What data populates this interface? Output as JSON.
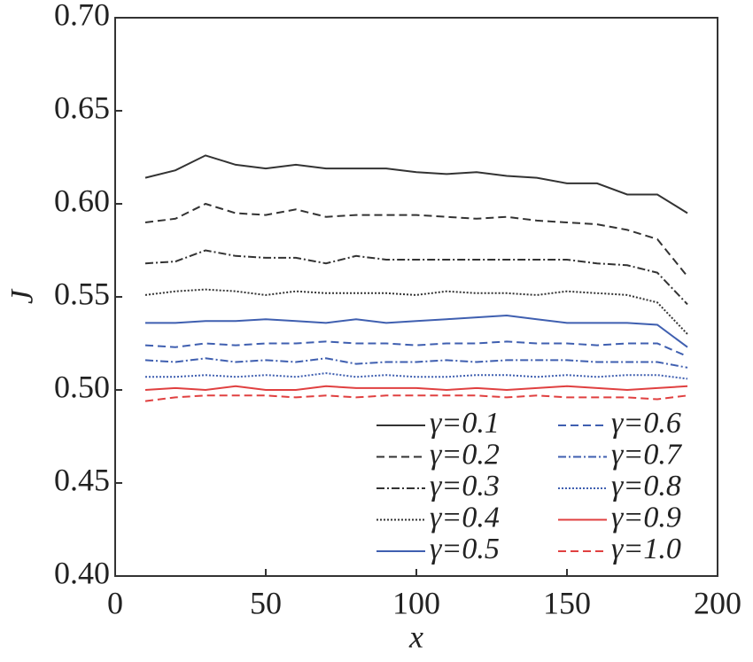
{
  "chart_data": {
    "type": "line",
    "xlabel": "x",
    "ylabel": "J",
    "x": [
      10,
      20,
      30,
      40,
      50,
      60,
      70,
      80,
      90,
      100,
      110,
      120,
      130,
      140,
      150,
      160,
      170,
      180,
      190
    ],
    "xlim": [
      0,
      200
    ],
    "xticks": [
      0,
      50,
      100,
      150,
      200
    ],
    "ylim": [
      0.4,
      0.7
    ],
    "yticks": [
      {
        "value": 0.4,
        "label": "0.40"
      },
      {
        "value": 0.45,
        "label": "0.45"
      },
      {
        "value": 0.5,
        "label": "0.50"
      },
      {
        "value": 0.55,
        "label": "0.55"
      },
      {
        "value": 0.6,
        "label": "0.60"
      },
      {
        "value": 0.65,
        "label": "0.65"
      },
      {
        "value": 0.7,
        "label": "0.70"
      }
    ],
    "legend": "lower right",
    "series": [
      {
        "name": "γ=0.1",
        "color": "#333333",
        "dash": "solid",
        "values": [
          0.614,
          0.618,
          0.626,
          0.621,
          0.619,
          0.621,
          0.619,
          0.619,
          0.619,
          0.617,
          0.616,
          0.617,
          0.615,
          0.614,
          0.611,
          0.611,
          0.605,
          0.605,
          0.595
        ]
      },
      {
        "name": "γ=0.2",
        "color": "#333333",
        "dash": "dashed",
        "values": [
          0.59,
          0.592,
          0.6,
          0.595,
          0.594,
          0.597,
          0.593,
          0.594,
          0.594,
          0.594,
          0.593,
          0.592,
          0.593,
          0.591,
          0.59,
          0.589,
          0.586,
          0.581,
          0.561
        ]
      },
      {
        "name": "γ=0.3",
        "color": "#333333",
        "dash": "dashdot",
        "values": [
          0.568,
          0.569,
          0.575,
          0.572,
          0.571,
          0.571,
          0.568,
          0.572,
          0.57,
          0.57,
          0.57,
          0.57,
          0.57,
          0.57,
          0.57,
          0.568,
          0.567,
          0.563,
          0.546
        ]
      },
      {
        "name": "γ=0.4",
        "color": "#333333",
        "dash": "dotted",
        "values": [
          0.551,
          0.553,
          0.554,
          0.553,
          0.551,
          0.553,
          0.552,
          0.552,
          0.552,
          0.551,
          0.553,
          0.552,
          0.552,
          0.551,
          0.553,
          0.552,
          0.551,
          0.547,
          0.53
        ]
      },
      {
        "name": "γ=0.5",
        "color": "#3f5fb0",
        "dash": "solid",
        "values": [
          0.536,
          0.536,
          0.537,
          0.537,
          0.538,
          0.537,
          0.536,
          0.538,
          0.536,
          0.537,
          0.538,
          0.539,
          0.54,
          0.538,
          0.536,
          0.536,
          0.536,
          0.535,
          0.523
        ]
      },
      {
        "name": "γ=0.6",
        "color": "#3f5fb0",
        "dash": "dashed",
        "values": [
          0.524,
          0.523,
          0.525,
          0.524,
          0.525,
          0.525,
          0.526,
          0.525,
          0.525,
          0.524,
          0.525,
          0.525,
          0.526,
          0.525,
          0.525,
          0.524,
          0.525,
          0.525,
          0.518
        ]
      },
      {
        "name": "γ=0.7",
        "color": "#3f5fb0",
        "dash": "dashdot",
        "values": [
          0.516,
          0.515,
          0.517,
          0.515,
          0.516,
          0.515,
          0.517,
          0.514,
          0.515,
          0.515,
          0.516,
          0.515,
          0.516,
          0.516,
          0.516,
          0.515,
          0.515,
          0.515,
          0.512
        ]
      },
      {
        "name": "γ=0.8",
        "color": "#3f5fb0",
        "dash": "dotted",
        "values": [
          0.507,
          0.507,
          0.508,
          0.507,
          0.508,
          0.507,
          0.509,
          0.507,
          0.508,
          0.507,
          0.507,
          0.508,
          0.508,
          0.507,
          0.508,
          0.507,
          0.508,
          0.508,
          0.506
        ]
      },
      {
        "name": "γ=0.9",
        "color": "#e04040",
        "dash": "solid",
        "values": [
          0.5,
          0.501,
          0.5,
          0.502,
          0.5,
          0.5,
          0.502,
          0.501,
          0.501,
          0.501,
          0.5,
          0.501,
          0.5,
          0.501,
          0.502,
          0.501,
          0.5,
          0.501,
          0.502
        ]
      },
      {
        "name": "γ=1.0",
        "color": "#e04040",
        "dash": "dashed",
        "values": [
          0.494,
          0.496,
          0.497,
          0.497,
          0.497,
          0.496,
          0.497,
          0.496,
          0.497,
          0.497,
          0.497,
          0.497,
          0.496,
          0.497,
          0.496,
          0.496,
          0.496,
          0.495,
          0.497
        ]
      }
    ]
  }
}
